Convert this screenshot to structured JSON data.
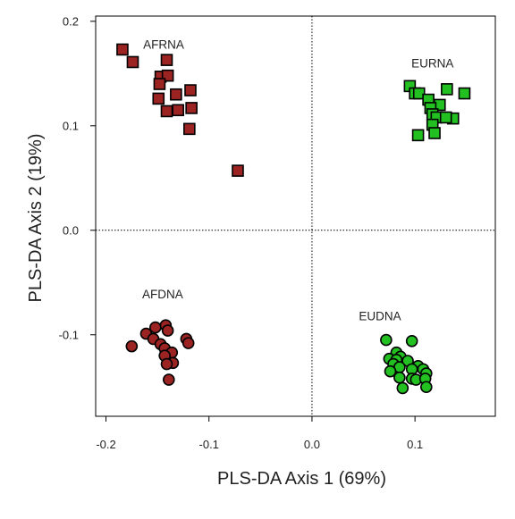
{
  "chart_data": {
    "type": "scatter",
    "title": "",
    "xlabel": "PLS-DA Axis 1 (69%)",
    "ylabel": "PLS-DA Axis 2 (19%)",
    "xlim": [
      -0.21,
      0.178
    ],
    "ylim": [
      -0.178,
      0.205
    ],
    "x_ticks": [
      -0.2,
      -0.1,
      0.0,
      0.1
    ],
    "x_tick_labels": [
      "-0.2",
      "-0.1",
      "0.0",
      "0.1"
    ],
    "y_ticks": [
      -0.1,
      0.0,
      0.1,
      0.2
    ],
    "y_tick_labels": [
      "-0.1",
      "0.0",
      "0.1",
      "0.2"
    ],
    "reference_lines": {
      "x": 0,
      "y": 0,
      "style": "dotted"
    },
    "grid": false,
    "series": [
      {
        "name": "AFRNA",
        "marker": "square",
        "color": "#9b2423",
        "points": [
          [
            -0.184,
            0.173
          ],
          [
            -0.174,
            0.161
          ],
          [
            -0.141,
            0.163
          ],
          [
            -0.147,
            0.147
          ],
          [
            -0.14,
            0.148
          ],
          [
            -0.148,
            0.14
          ],
          [
            -0.132,
            0.13
          ],
          [
            -0.118,
            0.134
          ],
          [
            -0.149,
            0.126
          ],
          [
            -0.13,
            0.115
          ],
          [
            -0.141,
            0.114
          ],
          [
            -0.117,
            0.117
          ],
          [
            -0.119,
            0.097
          ],
          [
            -0.072,
            0.057
          ]
        ]
      },
      {
        "name": "EURNA",
        "marker": "square",
        "color": "#22c021",
        "points": [
          [
            0.095,
            0.138
          ],
          [
            0.1,
            0.131
          ],
          [
            0.104,
            0.131
          ],
          [
            0.131,
            0.135
          ],
          [
            0.148,
            0.131
          ],
          [
            0.113,
            0.125
          ],
          [
            0.124,
            0.12
          ],
          [
            0.115,
            0.117
          ],
          [
            0.117,
            0.111
          ],
          [
            0.121,
            0.108
          ],
          [
            0.137,
            0.107
          ],
          [
            0.13,
            0.108
          ],
          [
            0.117,
            0.101
          ],
          [
            0.119,
            0.093
          ],
          [
            0.103,
            0.091
          ]
        ]
      },
      {
        "name": "AFDNA",
        "marker": "circle",
        "color": "#9b2423",
        "points": [
          [
            -0.142,
            -0.091
          ],
          [
            -0.152,
            -0.093
          ],
          [
            -0.14,
            -0.096
          ],
          [
            -0.161,
            -0.099
          ],
          [
            -0.154,
            -0.104
          ],
          [
            -0.122,
            -0.104
          ],
          [
            -0.12,
            -0.108
          ],
          [
            -0.147,
            -0.109
          ],
          [
            -0.175,
            -0.111
          ],
          [
            -0.143,
            -0.113
          ],
          [
            -0.136,
            -0.117
          ],
          [
            -0.143,
            -0.12
          ],
          [
            -0.135,
            -0.127
          ],
          [
            -0.141,
            -0.128
          ],
          [
            -0.139,
            -0.143
          ]
        ]
      },
      {
        "name": "EUDNA",
        "marker": "circle",
        "color": "#22c021",
        "points": [
          [
            0.072,
            -0.105
          ],
          [
            0.097,
            -0.106
          ],
          [
            0.082,
            -0.117
          ],
          [
            0.086,
            -0.121
          ],
          [
            0.075,
            -0.123
          ],
          [
            0.082,
            -0.124
          ],
          [
            0.093,
            -0.125
          ],
          [
            0.103,
            -0.13
          ],
          [
            0.108,
            -0.133
          ],
          [
            0.079,
            -0.128
          ],
          [
            0.085,
            -0.131
          ],
          [
            0.097,
            -0.133
          ],
          [
            0.076,
            -0.135
          ],
          [
            0.111,
            -0.137
          ],
          [
            0.085,
            -0.141
          ],
          [
            0.097,
            -0.142
          ],
          [
            0.101,
            -0.143
          ],
          [
            0.11,
            -0.142
          ],
          [
            0.088,
            -0.151
          ],
          [
            0.111,
            -0.15
          ]
        ]
      }
    ],
    "group_labels": [
      {
        "text": "AFRNA",
        "x": -0.144,
        "y": 0.178
      },
      {
        "text": "EURNA",
        "x": 0.117,
        "y": 0.16
      },
      {
        "text": "AFDNA",
        "x": -0.145,
        "y": -0.061
      },
      {
        "text": "EUDNA",
        "x": 0.066,
        "y": -0.082
      }
    ]
  }
}
